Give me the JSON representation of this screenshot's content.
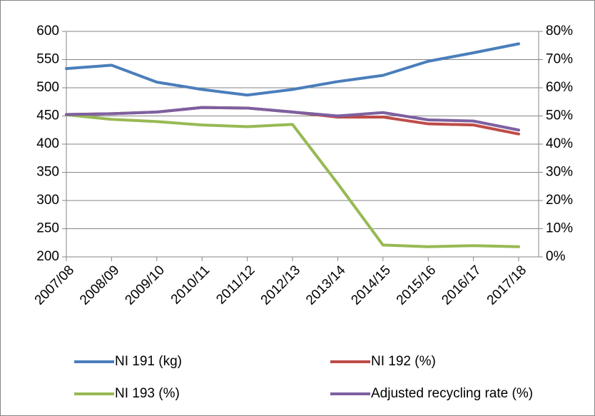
{
  "chart_data": {
    "type": "line",
    "categories": [
      "2007/08",
      "2008/09",
      "2009/10",
      "2010/11",
      "2011/12",
      "2012/13",
      "2013/14",
      "2014/15",
      "2015/16",
      "2016/17",
      "2017/18"
    ],
    "series": [
      {
        "name": "NI 191 (kg)",
        "color": "#4a7ebb",
        "axis": "y",
        "values": [
          534,
          540,
          510,
          497,
          487,
          497,
          511,
          522,
          547,
          562,
          578
        ]
      },
      {
        "name": "NI 192 (%)",
        "color": "#be4b48",
        "axis": "y2",
        "values": [
          50.5,
          50.8,
          51.4,
          53,
          52.8,
          51.4,
          49.6,
          49.6,
          47.2,
          46.8,
          43.6
        ]
      },
      {
        "name": "NI 193 (%)",
        "color": "#98b954",
        "axis": "y2",
        "values": [
          50.4,
          48.8,
          48,
          46.8,
          46.2,
          47,
          26,
          4.2,
          3.6,
          4,
          3.6
        ]
      },
      {
        "name": "Adjusted recycling rate (%)",
        "color": "#7d60a0",
        "axis": "y2",
        "values": [
          50.5,
          50.8,
          51.4,
          53,
          52.8,
          51.4,
          50,
          51.2,
          48.6,
          48.2,
          45
        ]
      }
    ],
    "ylim": [
      200,
      600
    ],
    "yticks": [
      200,
      250,
      300,
      350,
      400,
      450,
      500,
      550,
      600
    ],
    "y2lim": [
      0,
      80
    ],
    "y2ticks": [
      {
        "value": 0,
        "label": "0%"
      },
      {
        "value": 10,
        "label": "10%"
      },
      {
        "value": 20,
        "label": "20%"
      },
      {
        "value": 30,
        "label": "30%"
      },
      {
        "value": 40,
        "label": "40%"
      },
      {
        "value": 50,
        "label": "50%"
      },
      {
        "value": 60,
        "label": "60%"
      },
      {
        "value": 70,
        "label": "70%"
      },
      {
        "value": 80,
        "label": "80%"
      }
    ],
    "grid": true,
    "legend": "bottom"
  }
}
